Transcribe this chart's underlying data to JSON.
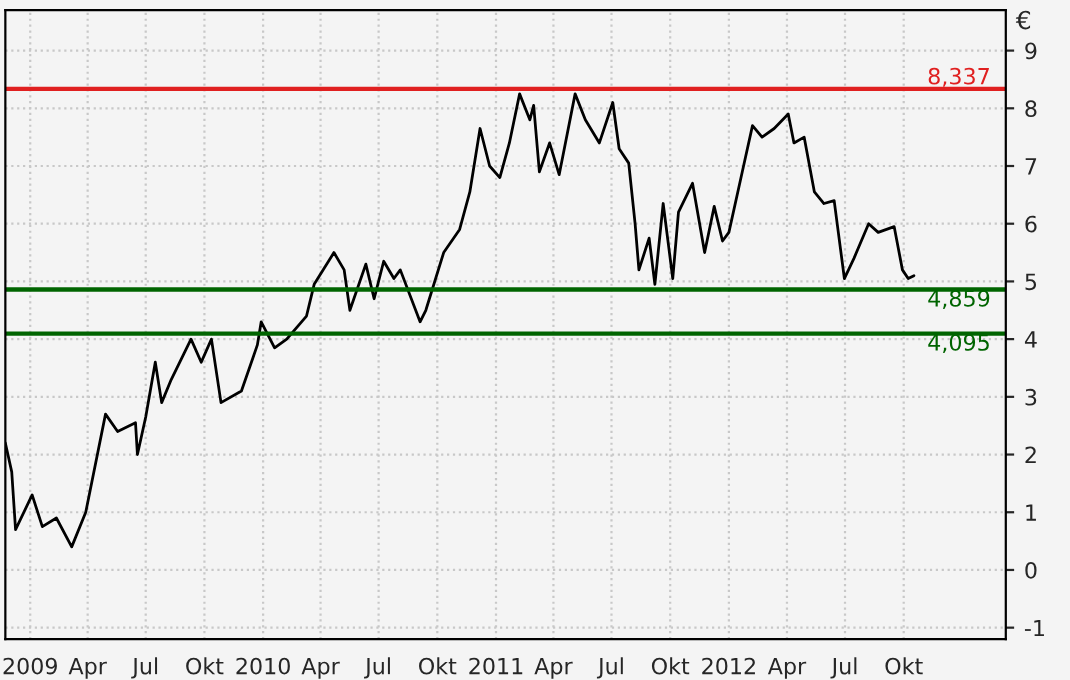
{
  "chart_data": {
    "type": "line",
    "ylabel": "€",
    "x": [
      "2008-11-23",
      "2008-12-03",
      "2008-12-09",
      "2009-01-04",
      "2009-01-20",
      "2009-02-11",
      "2009-03-07",
      "2009-03-29",
      "2009-04-29",
      "2009-05-18",
      "2009-06-15",
      "2009-06-18",
      "2009-07-01",
      "2009-07-16",
      "2009-07-26",
      "2009-08-10",
      "2009-09-10",
      "2009-09-26",
      "2009-10-12",
      "2009-10-27",
      "2009-11-28",
      "2009-12-23",
      "2009-12-29",
      "2010-01-19",
      "2010-02-07",
      "2010-03-10",
      "2010-03-22",
      "2010-04-22",
      "2010-05-08",
      "2010-05-17",
      "2010-06-11",
      "2010-06-24",
      "2010-07-09",
      "2010-07-25",
      "2010-08-04",
      "2010-09-04",
      "2010-09-13",
      "2010-10-11",
      "2010-11-05",
      "2010-11-21",
      "2010-12-07",
      "2010-12-22",
      "2011-01-07",
      "2011-01-22",
      "2011-02-07",
      "2011-02-23",
      "2011-03-01",
      "2011-03-10",
      "2011-03-26",
      "2011-04-10",
      "2011-05-05",
      "2011-05-21",
      "2011-06-12",
      "2011-07-03",
      "2011-07-13",
      "2011-07-28",
      "2011-08-07",
      "2011-08-13",
      "2011-08-29",
      "2011-09-07",
      "2011-09-20",
      "2011-10-05",
      "2011-10-14",
      "2011-11-05",
      "2011-11-24",
      "2011-12-09",
      "2011-12-22",
      "2012-01-01",
      "2012-01-22",
      "2012-02-07",
      "2012-02-22",
      "2012-03-12",
      "2012-04-03",
      "2012-04-12",
      "2012-04-28",
      "2012-05-14",
      "2012-05-29",
      "2012-06-14",
      "2012-06-30",
      "2012-07-15",
      "2012-08-07",
      "2012-08-22",
      "2012-09-16",
      "2012-09-29",
      "2012-10-08",
      "2012-10-17"
    ],
    "series": [
      {
        "color": "#000000",
        "values": [
          2.2,
          1.7,
          0.7,
          1.3,
          0.75,
          0.9,
          0.4,
          1.0,
          2.7,
          2.4,
          2.55,
          2.0,
          2.65,
          3.6,
          2.9,
          3.3,
          4.0,
          3.6,
          4.0,
          2.9,
          3.1,
          3.9,
          4.3,
          3.85,
          4.0,
          4.4,
          4.95,
          5.5,
          5.2,
          4.5,
          5.3,
          4.7,
          5.35,
          5.05,
          5.2,
          4.3,
          4.5,
          5.5,
          5.9,
          6.55,
          7.65,
          7.0,
          6.8,
          7.4,
          8.25,
          7.8,
          8.05,
          6.9,
          7.4,
          6.85,
          8.25,
          7.8,
          7.4,
          8.1,
          7.3,
          7.05,
          6.0,
          5.2,
          5.75,
          4.95,
          6.35,
          5.05,
          6.2,
          6.7,
          5.5,
          6.3,
          5.7,
          5.85,
          6.9,
          7.7,
          7.5,
          7.65,
          7.9,
          7.4,
          7.5,
          6.55,
          6.35,
          6.4,
          5.05,
          5.4,
          6.0,
          5.85,
          5.95,
          5.2,
          5.05,
          5.1
        ]
      }
    ],
    "xlim": [
      "2008-11-23",
      "2013-03-10"
    ],
    "xticks": [
      {
        "value": "2009-01-01",
        "label": "2009"
      },
      {
        "value": "2009-04-01",
        "label": "Apr"
      },
      {
        "value": "2009-07-01",
        "label": "Jul"
      },
      {
        "value": "2009-10-01",
        "label": "Okt"
      },
      {
        "value": "2010-01-01",
        "label": "2010"
      },
      {
        "value": "2010-04-01",
        "label": "Apr"
      },
      {
        "value": "2010-07-01",
        "label": "Jul"
      },
      {
        "value": "2010-10-01",
        "label": "Okt"
      },
      {
        "value": "2011-01-01",
        "label": "2011"
      },
      {
        "value": "2011-04-01",
        "label": "Apr"
      },
      {
        "value": "2011-07-01",
        "label": "Jul"
      },
      {
        "value": "2011-10-01",
        "label": "Okt"
      },
      {
        "value": "2012-01-01",
        "label": "2012"
      },
      {
        "value": "2012-04-01",
        "label": "Apr"
      },
      {
        "value": "2012-07-01",
        "label": "Jul"
      },
      {
        "value": "2012-10-01",
        "label": "Okt"
      }
    ],
    "ylim": [
      -1.2,
      9.7
    ],
    "yticks": [
      -1,
      0,
      1,
      2,
      3,
      4,
      5,
      6,
      7,
      8,
      9
    ],
    "ref_lines": [
      {
        "axis": "y",
        "value": 8.337,
        "label": "8,337",
        "color": "#e02020"
      },
      {
        "axis": "y",
        "value": 4.859,
        "label": "4,859",
        "color": "#006400"
      },
      {
        "axis": "y",
        "value": 4.095,
        "label": "4,095",
        "color": "#006400"
      }
    ],
    "grid": true,
    "legend": false
  }
}
